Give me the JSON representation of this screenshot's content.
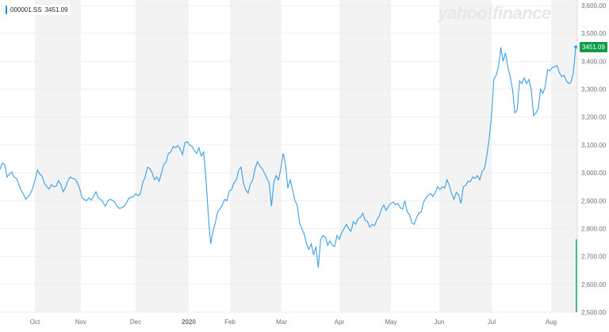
{
  "legend": {
    "symbol": "000001.SS",
    "value": "3451.09",
    "color": "#1f8ce8"
  },
  "brand": "yahoo!finance",
  "current_price_tag": "3451.09",
  "colors": {
    "line": "#3b9ee9",
    "band": "#f3f3f3",
    "grid": "#eceded",
    "axis_text": "#6e7079",
    "price_tag_bg": "#0d9c4a",
    "volume_bar": "#19b35a"
  },
  "chart_data": {
    "type": "line",
    "title": "",
    "xlabel": "",
    "ylabel": "",
    "ylim": [
      2500,
      3600
    ],
    "y_ticks": [
      "2,500.00",
      "2,600.00",
      "2,700.00",
      "2,800.00",
      "2,900.00",
      "3,000.00",
      "3,100.00",
      "3,200.00",
      "3,300.00",
      "3,400.00",
      "3,500.00",
      "3,600.00"
    ],
    "x_ticks": [
      "Oct",
      "Nov",
      "Dec",
      "2020",
      "Feb",
      "Mar",
      "Apr",
      "May",
      "Jun",
      "Jul",
      "Aug"
    ],
    "grid": true,
    "series": [
      {
        "values": [
          3012,
          3035,
          3030,
          2985,
          2995,
          3003,
          2985,
          2980,
          2960,
          2938,
          2924,
          2905,
          2915,
          2925,
          2945,
          2975,
          3010,
          2995,
          2988,
          2962,
          2950,
          2942,
          2958,
          2950,
          2952,
          2972,
          2958,
          2932,
          2948,
          2972,
          2985,
          2980,
          2978,
          2965,
          2945,
          2912,
          2905,
          2900,
          2910,
          2902,
          2915,
          2932,
          2910,
          2905,
          2895,
          2880,
          2898,
          2905,
          2902,
          2895,
          2880,
          2872,
          2875,
          2880,
          2892,
          2908,
          2912,
          2915,
          2925,
          2918,
          2925,
          2965,
          2985,
          3020,
          3015,
          3000,
          2975,
          2985,
          2970,
          3000,
          3030,
          3040,
          3070,
          3075,
          3095,
          3090,
          3098,
          3085,
          3065,
          3108,
          3112,
          3100,
          3095,
          3080,
          3070,
          3090,
          3060,
          3075,
          2978,
          2850,
          2745,
          2790,
          2820,
          2860,
          2870,
          2885,
          2905,
          2900,
          2935,
          2940,
          2965,
          2975,
          3010,
          3020,
          2965,
          2938,
          2928,
          2960,
          2975,
          3015,
          3040,
          3025,
          3015,
          3000,
          2980,
          2965,
          2880,
          2965,
          2990,
          2975,
          3015,
          3070,
          3030,
          2945,
          2975,
          2940,
          2900,
          2885,
          2820,
          2800,
          2780,
          2745,
          2725,
          2745,
          2705,
          2735,
          2660,
          2760,
          2775,
          2770,
          2740,
          2755,
          2740,
          2735,
          2775,
          2762,
          2785,
          2800,
          2815,
          2800,
          2790,
          2825,
          2815,
          2835,
          2840,
          2855,
          2830,
          2825,
          2805,
          2815,
          2810,
          2830,
          2845,
          2870,
          2885,
          2865,
          2880,
          2890,
          2895,
          2885,
          2890,
          2875,
          2870,
          2900,
          2860,
          2850,
          2820,
          2815,
          2840,
          2855,
          2860,
          2895,
          2910,
          2920,
          2925,
          2915,
          2930,
          2950,
          2940,
          2950,
          2945,
          2975,
          2955,
          2925,
          2905,
          2930,
          2920,
          2890,
          2950,
          2955,
          2970,
          2968,
          2985,
          2980,
          2990,
          2975,
          3005,
          3015,
          3060,
          3120,
          3200,
          3335,
          3350,
          3380,
          3450,
          3400,
          3430,
          3380,
          3345,
          3300,
          3215,
          3225,
          3330,
          3320,
          3340,
          3320,
          3335,
          3300,
          3205,
          3215,
          3230,
          3300,
          3285,
          3310,
          3370,
          3365,
          3378,
          3380,
          3385,
          3360,
          3345,
          3350,
          3330,
          3320,
          3325,
          3360,
          3451.09
        ]
      }
    ]
  }
}
